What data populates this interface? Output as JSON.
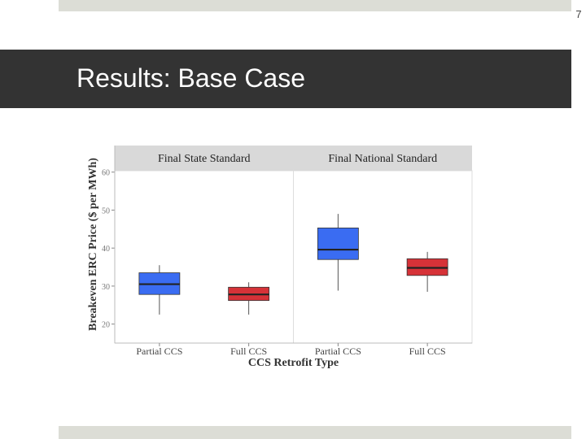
{
  "slide": {
    "page_number": "7",
    "title": "Results: Base Case"
  },
  "colors": {
    "title_bar": "#333333",
    "strip": "#dcddd6",
    "partial": "#3a6cf2",
    "full": "#d63238",
    "facet_header": "#d9d9d9",
    "whisker": "#555555"
  },
  "chart_data": {
    "type": "boxplot",
    "xlabel": "CCS Retrofit Type",
    "ylabel": "Breakeven ERC Price ($ per MWh)",
    "ylim": [
      15,
      67
    ],
    "yticks": [
      20,
      30,
      40,
      50,
      60
    ],
    "categories": [
      "Partial CCS",
      "Full CCS"
    ],
    "facets": [
      {
        "name": "Final State Standard",
        "boxes": [
          {
            "category": "Partial CCS",
            "color": "#3a6cf2",
            "min": 22.5,
            "q1": 27.8,
            "median": 30.5,
            "q3": 33.5,
            "max": 35.5
          },
          {
            "category": "Full CCS",
            "color": "#d63238",
            "min": 22.5,
            "q1": 26.2,
            "median": 27.8,
            "q3": 29.7,
            "max": 31.0
          }
        ]
      },
      {
        "name": "Final National Standard",
        "boxes": [
          {
            "category": "Partial CCS",
            "color": "#3a6cf2",
            "min": 28.8,
            "q1": 37.0,
            "median": 39.6,
            "q3": 45.3,
            "max": 49.0
          },
          {
            "category": "Full CCS",
            "color": "#d63238",
            "min": 28.5,
            "q1": 32.8,
            "median": 34.8,
            "q3": 37.2,
            "max": 39.0
          }
        ]
      }
    ]
  }
}
